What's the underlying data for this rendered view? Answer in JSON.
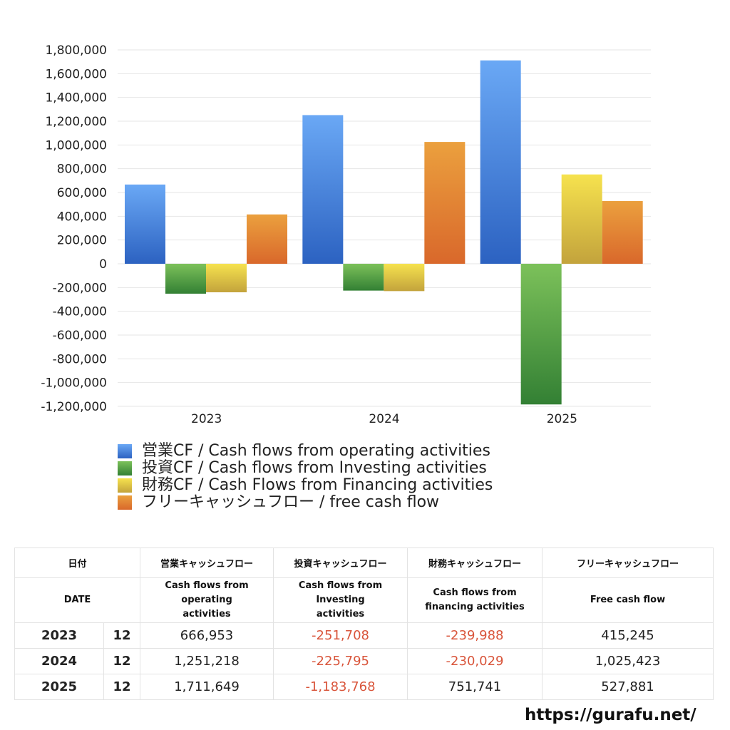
{
  "chart_data": {
    "type": "bar",
    "categories": [
      "2023",
      "2024",
      "2025"
    ],
    "ylim": [
      -1200000,
      1800000
    ],
    "yticks": [
      1800000,
      1600000,
      1400000,
      1200000,
      1000000,
      800000,
      600000,
      400000,
      200000,
      0,
      -200000,
      -400000,
      -600000,
      -800000,
      -1000000,
      -1200000
    ],
    "ytick_labels": [
      "1,800,000",
      "1,600,000",
      "1,400,000",
      "1,200,000",
      "1,000,000",
      "800,000",
      "600,000",
      "400,000",
      "200,000",
      "0",
      "-200,000",
      "-400,000",
      "-600,000",
      "-800,000",
      "-1,000,000",
      "-1,200,000"
    ],
    "grid": true,
    "legend_position": "bottom",
    "series": [
      {
        "name": "営業CF / Cash flows from operating activities",
        "values": [
          666953,
          1251218,
          1711649
        ],
        "color_top": "#6aa8f5",
        "color_bottom": "#2c62c1"
      },
      {
        "name": "投資CF / Cash flows from Investing activities",
        "values": [
          -251708,
          -225795,
          -1183768
        ],
        "color_top": "#7cc15a",
        "color_bottom": "#338034"
      },
      {
        "name": "財務CF / Cash Flows from Financing activities",
        "values": [
          -239988,
          -230029,
          751741
        ],
        "color_top": "#f6e24e",
        "color_bottom": "#c3a33c"
      },
      {
        "name": "フリーキャッシュフロー / free cash flow",
        "values": [
          415245,
          1025423,
          527881
        ],
        "color_top": "#eba03e",
        "color_bottom": "#d9682b"
      }
    ]
  },
  "table": {
    "headers_jp": [
      "日付",
      "営業キャッシュフロー",
      "投資キャッシュフロー",
      "財務キャッシュフロー",
      "フリーキャッシュフロー"
    ],
    "headers_en": [
      "DATE",
      "Cash flows from operating activities",
      "Cash flows from Investing activities",
      "Cash flows from financing activities",
      "Free cash flow"
    ],
    "rows": [
      {
        "year": "2023",
        "month": "12",
        "operating": "666,953",
        "investing": "-251,708",
        "financing": "-239,988",
        "free": "415,245"
      },
      {
        "year": "2024",
        "month": "12",
        "operating": "1,251,218",
        "investing": "-225,795",
        "financing": "-230,029",
        "free": "1,025,423"
      },
      {
        "year": "2025",
        "month": "12",
        "operating": "1,711,649",
        "investing": "-1,183,768",
        "financing": "751,741",
        "free": "527,881"
      }
    ]
  },
  "footer": {
    "url": "https://gurafu.net/"
  }
}
